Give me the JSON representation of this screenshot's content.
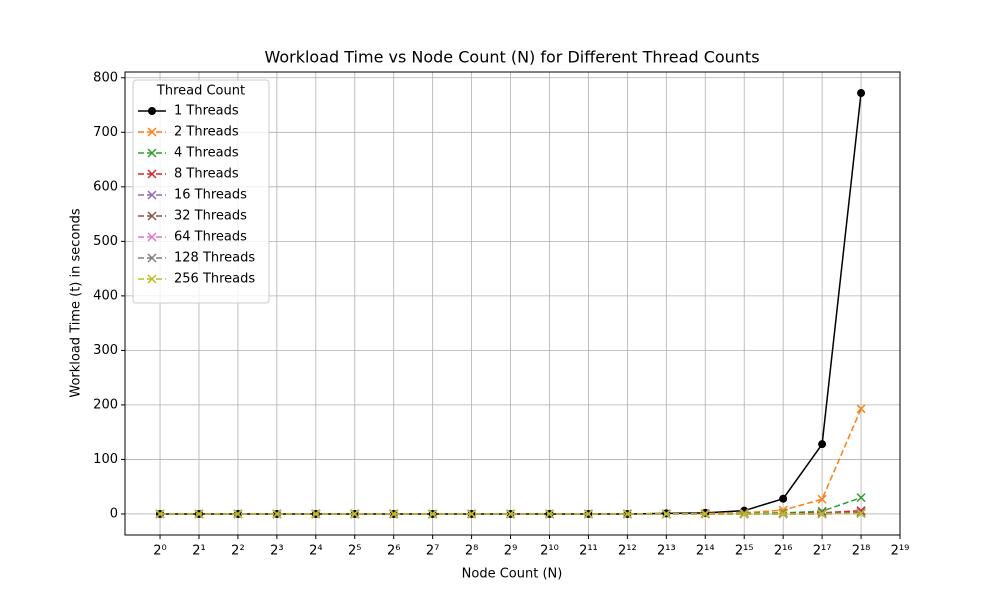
{
  "chart_data": {
    "type": "line",
    "title": "Workload Time vs Node Count (N) for Different Thread Counts",
    "x_label": "Node Count (N)",
    "y_label": "Workload Time (t) in seconds",
    "x_scale": "log2",
    "grid": true,
    "legend_title": "Thread Count",
    "legend_position": "upper left",
    "x": [
      1,
      2,
      4,
      8,
      16,
      32,
      64,
      128,
      256,
      512,
      1024,
      2048,
      4096,
      8192,
      16384,
      32768,
      65536,
      131072,
      262144
    ],
    "xlim": [
      0.536,
      524288
    ],
    "ylim": [
      -38.6,
      810.6
    ],
    "xticks": [
      {
        "value": 1,
        "label": "2⁰"
      },
      {
        "value": 2,
        "label": "2¹"
      },
      {
        "value": 4,
        "label": "2²"
      },
      {
        "value": 8,
        "label": "2³"
      },
      {
        "value": 16,
        "label": "2⁴"
      },
      {
        "value": 32,
        "label": "2⁵"
      },
      {
        "value": 64,
        "label": "2⁶"
      },
      {
        "value": 128,
        "label": "2⁷"
      },
      {
        "value": 256,
        "label": "2⁸"
      },
      {
        "value": 512,
        "label": "2⁹"
      },
      {
        "value": 1024,
        "label": "2¹⁰"
      },
      {
        "value": 2048,
        "label": "2¹¹"
      },
      {
        "value": 4096,
        "label": "2¹²"
      },
      {
        "value": 8192,
        "label": "2¹³"
      },
      {
        "value": 16384,
        "label": "2¹⁴"
      },
      {
        "value": 32768,
        "label": "2¹⁵"
      },
      {
        "value": 65536,
        "label": "2¹⁶"
      },
      {
        "value": 131072,
        "label": "2¹⁷"
      },
      {
        "value": 262144,
        "label": "2¹⁸"
      },
      {
        "value": 524288,
        "label": "2¹⁹"
      }
    ],
    "yticks": [
      0,
      100,
      200,
      300,
      400,
      500,
      600,
      700,
      800
    ],
    "series": [
      {
        "name": "1 Threads",
        "color": "#000000",
        "marker": "o",
        "linestyle": "solid",
        "values": [
          0,
          0,
          0,
          0,
          0,
          0,
          0,
          0,
          0,
          0,
          0,
          0,
          0,
          1,
          2,
          6,
          28,
          128,
          772
        ]
      },
      {
        "name": "2 Threads",
        "color": "#ff7f0e",
        "marker": "x",
        "linestyle": "dashed",
        "values": [
          0,
          0,
          0,
          0,
          0,
          0,
          0,
          0,
          0,
          0,
          0,
          0,
          0,
          0,
          1,
          2,
          7,
          27,
          193
        ]
      },
      {
        "name": "4 Threads",
        "color": "#2ca02c",
        "marker": "x",
        "linestyle": "dashed",
        "values": [
          0,
          0,
          0,
          0,
          0,
          0,
          0,
          0,
          0,
          0,
          0,
          0,
          0,
          0,
          0,
          1,
          2,
          5,
          30
        ]
      },
      {
        "name": "8 Threads",
        "color": "#d62728",
        "marker": "x",
        "linestyle": "dashed",
        "values": [
          0,
          0,
          0,
          0,
          0,
          0,
          0,
          0,
          0,
          0,
          0,
          0,
          0,
          0,
          0,
          0,
          1,
          2,
          6
        ]
      },
      {
        "name": "16 Threads",
        "color": "#9467bd",
        "marker": "x",
        "linestyle": "dashed",
        "values": [
          0,
          0,
          0,
          0,
          0,
          0,
          0,
          0,
          0,
          0,
          0,
          0,
          0,
          0,
          0,
          0,
          0,
          1,
          3
        ]
      },
      {
        "name": "32 Threads",
        "color": "#8c564b",
        "marker": "x",
        "linestyle": "dashed",
        "values": [
          0,
          0,
          0,
          0,
          0,
          0,
          0,
          0,
          0,
          0,
          0,
          0,
          0,
          0,
          0,
          0,
          0,
          0,
          2
        ]
      },
      {
        "name": "64 Threads",
        "color": "#e377c2",
        "marker": "x",
        "linestyle": "dashed",
        "values": [
          0,
          0,
          0,
          0,
          0,
          0,
          0,
          0,
          0,
          0,
          0,
          0,
          0,
          0,
          0,
          0,
          0,
          0,
          1
        ]
      },
      {
        "name": "128 Threads",
        "color": "#7f7f7f",
        "marker": "x",
        "linestyle": "dashed",
        "values": [
          0,
          0,
          0,
          0,
          0,
          0,
          0,
          0,
          0,
          0,
          0,
          0,
          0,
          0,
          0,
          0,
          0,
          0,
          1
        ]
      },
      {
        "name": "256 Threads",
        "color": "#bcbd22",
        "marker": "x",
        "linestyle": "dashed",
        "values": [
          0,
          0,
          0,
          0,
          0,
          0,
          0,
          0,
          0,
          0,
          0,
          0,
          0,
          0,
          0,
          0,
          0,
          0,
          1
        ]
      }
    ]
  }
}
